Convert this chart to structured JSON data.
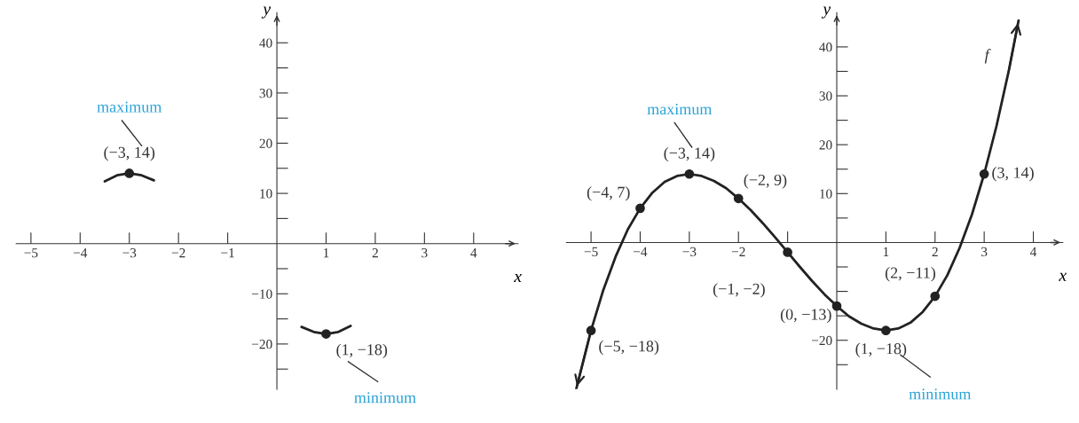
{
  "chart_data": [
    {
      "type": "line",
      "xlabel": "x",
      "ylabel": "y",
      "xlim": [
        -5.3,
        4.9
      ],
      "ylim": [
        -29,
        46
      ],
      "grid": false,
      "xticks": [
        {
          "value": -5,
          "label": "−5"
        },
        {
          "value": -4,
          "label": "−4"
        },
        {
          "value": -3,
          "label": "−3"
        },
        {
          "value": -2,
          "label": "−2"
        },
        {
          "value": -1,
          "label": "−1"
        },
        1,
        2,
        3,
        4
      ],
      "yticks": [
        {
          "value": -25,
          "label": null
        },
        {
          "value": -20,
          "label": "−20"
        },
        {
          "value": -15,
          "label": null
        },
        {
          "value": -10,
          "label": "−10"
        },
        {
          "value": -5,
          "label": null
        },
        {
          "value": 5,
          "label": null
        },
        10,
        {
          "value": 15,
          "label": null
        },
        20,
        {
          "value": 25,
          "label": null
        },
        30,
        {
          "value": 35,
          "label": null
        },
        40
      ],
      "series": [
        {
          "color": "#222222",
          "line_style": "solid",
          "x": [
            -3.5,
            -3.25,
            -3,
            -2.75,
            -2.5
          ],
          "values": [
            12.4,
            13.6,
            14,
            13.6,
            12.6
          ]
        },
        {
          "color": "#222222",
          "line_style": "solid",
          "x": [
            0.5,
            0.75,
            1,
            1.25,
            1.5
          ],
          "values": [
            -16.6,
            -17.6,
            -18,
            -17.6,
            -16.4
          ]
        },
        {
          "type": "scatter",
          "color": "#222222",
          "marker": "circle",
          "x": [
            -3,
            1
          ],
          "values": [
            14,
            -18
          ]
        }
      ],
      "annotations": [
        {
          "text": "(−3, 14)",
          "x": -3,
          "y": 14
        },
        "maximum",
        {
          "text": "(1, −18)",
          "x": 1,
          "y": -18
        },
        "minimum"
      ]
    },
    {
      "type": "line",
      "xlabel": "x",
      "ylabel": "y",
      "xlim": [
        -5.5,
        4.6
      ],
      "ylim": [
        -30,
        47
      ],
      "grid": false,
      "xticks": [
        {
          "value": -5,
          "label": "−5"
        },
        {
          "value": -4,
          "label": "−4"
        },
        {
          "value": -3,
          "label": "−3"
        },
        {
          "value": -2,
          "label": "−2"
        },
        {
          "value": -1,
          "label": null
        },
        1,
        2,
        3,
        4
      ],
      "yticks": [
        {
          "value": -25,
          "label": null
        },
        {
          "value": -20,
          "label": "−20"
        },
        {
          "value": -15,
          "label": null
        },
        {
          "value": -10,
          "label": null
        },
        {
          "value": -5,
          "label": null
        },
        {
          "value": 5,
          "label": null
        },
        10,
        {
          "value": 15,
          "label": null
        },
        20,
        {
          "value": 25,
          "label": null
        },
        30,
        {
          "value": 35,
          "label": null
        },
        40
      ],
      "series": [
        {
          "color": "#222222",
          "line_style": "solid",
          "x": [
            -5.3,
            -5,
            -4.75,
            -4.5,
            -4.25,
            -4,
            -3.75,
            -3.5,
            -3.25,
            -3,
            -2.75,
            -2.5,
            -2.25,
            -2,
            -1.75,
            -1.5,
            -1.25,
            -1,
            -0.75,
            -0.5,
            -0.25,
            0,
            0.25,
            0.5,
            0.75,
            1,
            1.25,
            1.5,
            1.75,
            2,
            2.25,
            2.5,
            2.75,
            3,
            3.25,
            3.5,
            3.7
          ],
          "values": [
            -29.9,
            -18,
            -9.7,
            -2.9,
            2.7,
            7,
            10.2,
            12.4,
            13.6,
            14,
            13.6,
            12.6,
            11.1,
            9,
            6.6,
            3.9,
            1,
            -2,
            -5,
            -7.9,
            -10.6,
            -13,
            -15.1,
            -16.6,
            -17.6,
            -18,
            -17.6,
            -16.4,
            -14.2,
            -11,
            -6.7,
            -1.1,
            5.7,
            14,
            23.8,
            35.1,
            45.4
          ]
        },
        {
          "type": "scatter",
          "color": "#222222",
          "marker": "circle",
          "x": [
            -5,
            -4,
            -3,
            -2,
            -1,
            0,
            1,
            2,
            3
          ],
          "values": [
            -18,
            7,
            14,
            9,
            -2,
            -13,
            -18,
            -11,
            14
          ]
        }
      ],
      "annotations": [
        {
          "text": "(−5, −18)",
          "x": -5,
          "y": -18
        },
        {
          "text": "(−4, 7)",
          "x": -4,
          "y": 7
        },
        {
          "text": "(−3, 14)",
          "x": -3,
          "y": 14
        },
        "maximum",
        {
          "text": "(−2, 9)",
          "x": -2,
          "y": 9
        },
        {
          "text": "(−1, −2)",
          "x": -1,
          "y": -2
        },
        {
          "text": "(0, −13)",
          "x": 0,
          "y": -13
        },
        {
          "text": "(1, −18)",
          "x": 1,
          "y": -18
        },
        "minimum",
        {
          "text": "(2, −11)",
          "x": 2,
          "y": -11
        },
        {
          "text": "(3, 14)",
          "x": 3,
          "y": 14
        },
        {
          "text": "f",
          "x": 3.5,
          "y": 35.1
        }
      ]
    }
  ]
}
